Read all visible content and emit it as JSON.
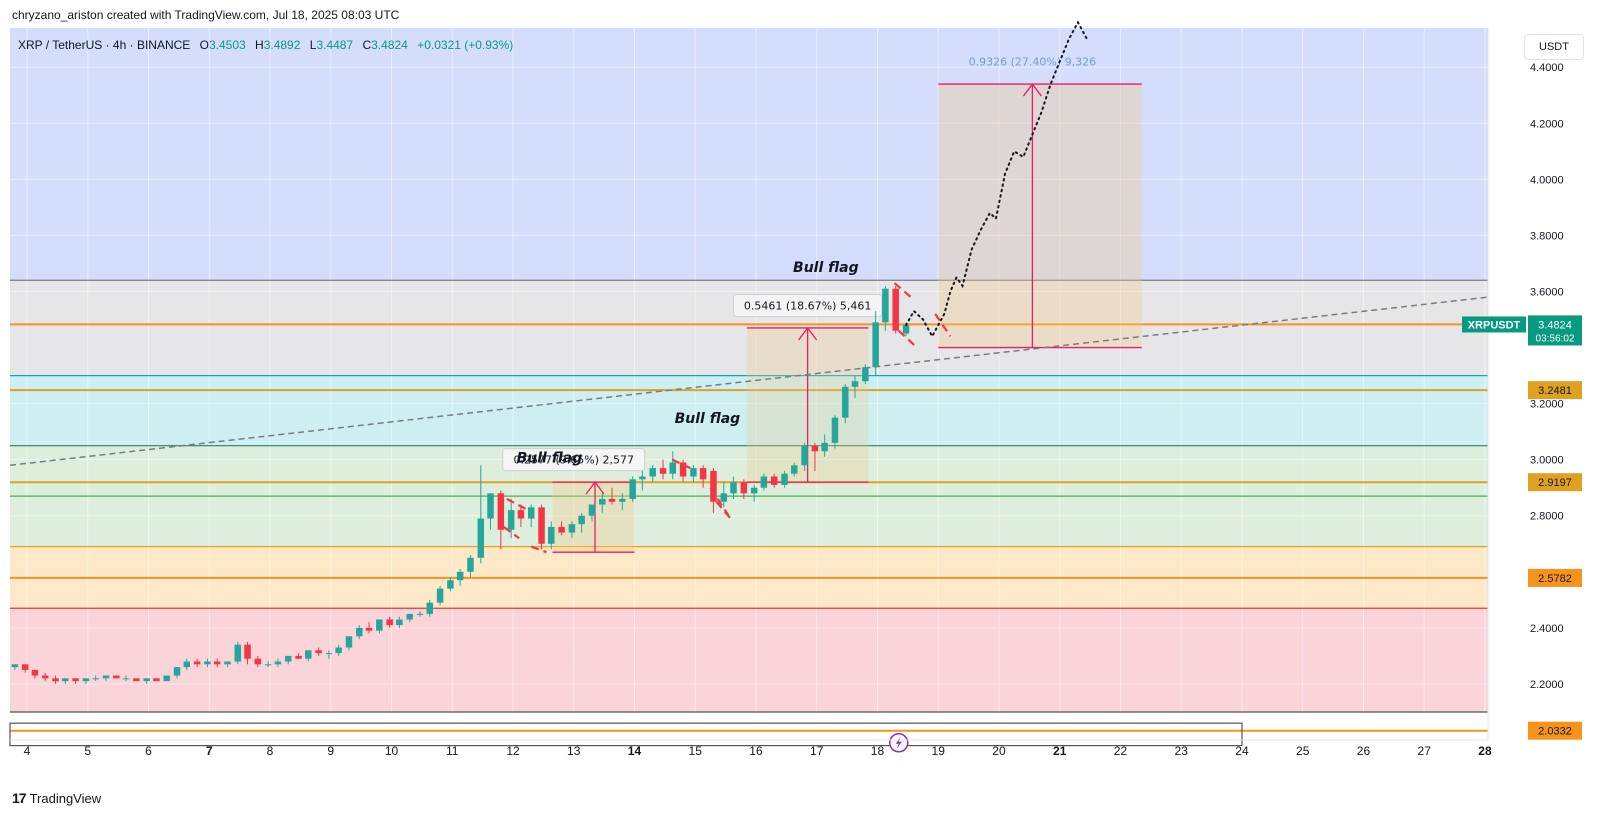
{
  "header": {
    "author_line": "chryzano_ariston created with TradingView.com, Jul 18, 2025 08:03 UTC"
  },
  "legend": {
    "symbol": "XRP / TetherUS · 4h · BINANCE",
    "open_label": "O",
    "open": "3.4503",
    "high_label": "H",
    "high": "3.4892",
    "low_label": "L",
    "low": "3.4487",
    "close_label": "C",
    "close": "3.4824",
    "change": "+0.0321 (+0.93%)"
  },
  "currency_button": "USDT",
  "footer": {
    "brand": "TradingView"
  },
  "colors": {
    "up": "#26a69a",
    "down": "#f23645",
    "orange": "#f7931a",
    "measure": "#e91e63",
    "zone_blue": "#d4ddfc",
    "zone_gray": "#e6e6e8",
    "zone_cyan": "#cdeff2",
    "zone_green": "#ddeedd",
    "zone_peach": "#fde8c9",
    "zone_pink": "#fad4d9"
  },
  "chart_data": {
    "type": "candlestick",
    "symbol": "XRPUSDT",
    "timeframe": "4h",
    "x_ticks": [
      "4",
      "5",
      "6",
      "7",
      "8",
      "9",
      "10",
      "11",
      "12",
      "13",
      "14",
      "15",
      "16",
      "17",
      "18",
      "19",
      "20",
      "21",
      "22",
      "23",
      "24",
      "25",
      "26",
      "27",
      "28"
    ],
    "bold_ticks": [
      "7",
      "14",
      "21",
      "28"
    ],
    "x_range_days": [
      3.72,
      28.05
    ],
    "y_ticks": [
      "4.4000",
      "4.2000",
      "4.0000",
      "3.8000",
      "3.6000",
      "3.2000",
      "3.0000",
      "2.8000",
      "2.4000",
      "2.2000"
    ],
    "y_range": [
      2.0,
      4.54
    ],
    "zones": [
      {
        "from": 3.64,
        "to": 4.54,
        "color": "zone_blue"
      },
      {
        "from": 3.3,
        "to": 3.64,
        "color": "zone_gray"
      },
      {
        "from": 3.05,
        "to": 3.3,
        "color": "zone_cyan"
      },
      {
        "from": 2.69,
        "to": 3.05,
        "color": "zone_green"
      },
      {
        "from": 2.47,
        "to": 2.69,
        "color": "zone_peach"
      },
      {
        "from": 2.1,
        "to": 2.47,
        "color": "zone_pink"
      }
    ],
    "levels": [
      {
        "y": 3.4827,
        "label": "3.4827",
        "color": "#f7931a",
        "width": 2
      },
      {
        "y": 3.2481,
        "label": "3.2481",
        "color": "#e0a020",
        "width": 2
      },
      {
        "y": 2.9197,
        "label": "2.9197",
        "color": "#e0a020",
        "width": 2
      },
      {
        "y": 2.5782,
        "label": "2.5782",
        "color": "#f7931a",
        "width": 2
      },
      {
        "y": 2.0332,
        "label": "2.0332",
        "color": "#f7931a",
        "width": 2
      }
    ],
    "lines": [
      {
        "y": 3.64,
        "color": "#787b86"
      },
      {
        "y": 3.3,
        "color": "#00acc1"
      },
      {
        "y": 3.05,
        "color": "#2e7d62"
      },
      {
        "y": 2.87,
        "color": "#4caf50"
      },
      {
        "y": 2.69,
        "color": "#ff9800"
      },
      {
        "y": 2.47,
        "color": "#e53935"
      },
      {
        "y": 2.1,
        "color": "#555555"
      }
    ],
    "bottom_box": {
      "x0": 3.72,
      "x1": 24.0,
      "y0": 1.98,
      "y1": 2.06
    },
    "last_price": {
      "symbol": "XRPUSDT",
      "price": "3.4824",
      "countdown": "03:56:02"
    },
    "candles": [
      [
        3.8,
        2.26,
        2.27,
        2.25,
        2.27
      ],
      [
        3.97,
        2.27,
        2.27,
        2.24,
        2.25
      ],
      [
        4.13,
        2.25,
        2.25,
        2.22,
        2.23
      ],
      [
        4.3,
        2.23,
        2.24,
        2.21,
        2.22
      ],
      [
        4.47,
        2.22,
        2.23,
        2.2,
        2.21
      ],
      [
        4.63,
        2.21,
        2.22,
        2.2,
        2.22
      ],
      [
        4.8,
        2.22,
        2.22,
        2.2,
        2.21
      ],
      [
        4.97,
        2.21,
        2.22,
        2.2,
        2.22
      ],
      [
        5.13,
        2.22,
        2.23,
        2.21,
        2.22
      ],
      [
        5.3,
        2.22,
        2.23,
        2.21,
        2.23
      ],
      [
        5.47,
        2.23,
        2.23,
        2.22,
        2.22
      ],
      [
        5.63,
        2.22,
        2.23,
        2.21,
        2.22
      ],
      [
        5.8,
        2.22,
        2.22,
        2.21,
        2.21
      ],
      [
        5.97,
        2.21,
        2.22,
        2.2,
        2.22
      ],
      [
        6.13,
        2.22,
        2.22,
        2.21,
        2.21
      ],
      [
        6.3,
        2.21,
        2.23,
        2.21,
        2.23
      ],
      [
        6.47,
        2.23,
        2.26,
        2.22,
        2.26
      ],
      [
        6.63,
        2.26,
        2.29,
        2.25,
        2.28
      ],
      [
        6.8,
        2.28,
        2.29,
        2.26,
        2.27
      ],
      [
        6.97,
        2.27,
        2.29,
        2.26,
        2.28
      ],
      [
        7.13,
        2.28,
        2.29,
        2.26,
        2.27
      ],
      [
        7.3,
        2.27,
        2.28,
        2.26,
        2.28
      ],
      [
        7.47,
        2.28,
        2.35,
        2.27,
        2.34
      ],
      [
        7.63,
        2.34,
        2.35,
        2.27,
        2.29
      ],
      [
        7.8,
        2.29,
        2.3,
        2.26,
        2.27
      ],
      [
        7.97,
        2.27,
        2.28,
        2.26,
        2.27
      ],
      [
        8.13,
        2.27,
        2.29,
        2.26,
        2.28
      ],
      [
        8.3,
        2.28,
        2.3,
        2.27,
        2.3
      ],
      [
        8.47,
        2.3,
        2.31,
        2.29,
        2.29
      ],
      [
        8.63,
        2.29,
        2.32,
        2.28,
        2.32
      ],
      [
        8.8,
        2.32,
        2.33,
        2.3,
        2.31
      ],
      [
        8.97,
        2.31,
        2.32,
        2.29,
        2.31
      ],
      [
        9.13,
        2.31,
        2.34,
        2.3,
        2.33
      ],
      [
        9.3,
        2.33,
        2.37,
        2.32,
        2.37
      ],
      [
        9.47,
        2.37,
        2.41,
        2.36,
        2.4
      ],
      [
        9.63,
        2.4,
        2.42,
        2.38,
        2.39
      ],
      [
        9.8,
        2.39,
        2.43,
        2.38,
        2.43
      ],
      [
        9.97,
        2.43,
        2.44,
        2.4,
        2.41
      ],
      [
        10.13,
        2.41,
        2.44,
        2.4,
        2.43
      ],
      [
        10.3,
        2.43,
        2.45,
        2.42,
        2.45
      ],
      [
        10.47,
        2.45,
        2.46,
        2.44,
        2.45
      ],
      [
        10.63,
        2.45,
        2.5,
        2.44,
        2.49
      ],
      [
        10.8,
        2.49,
        2.55,
        2.48,
        2.54
      ],
      [
        10.97,
        2.54,
        2.58,
        2.53,
        2.57
      ],
      [
        11.13,
        2.57,
        2.61,
        2.55,
        2.6
      ],
      [
        11.3,
        2.6,
        2.66,
        2.58,
        2.65
      ],
      [
        11.47,
        2.65,
        2.98,
        2.63,
        2.79
      ],
      [
        11.63,
        2.79,
        2.88,
        2.75,
        2.88
      ],
      [
        11.8,
        2.88,
        2.89,
        2.68,
        2.75
      ],
      [
        11.97,
        2.75,
        2.86,
        2.72,
        2.82
      ],
      [
        12.13,
        2.82,
        2.84,
        2.76,
        2.79
      ],
      [
        12.3,
        2.79,
        2.84,
        2.76,
        2.83
      ],
      [
        12.47,
        2.83,
        2.84,
        2.68,
        2.7
      ],
      [
        12.63,
        2.7,
        2.78,
        2.68,
        2.76
      ],
      [
        12.8,
        2.76,
        2.78,
        2.73,
        2.74
      ],
      [
        12.97,
        2.74,
        2.78,
        2.72,
        2.77
      ],
      [
        13.13,
        2.77,
        2.81,
        2.74,
        2.8
      ],
      [
        13.3,
        2.8,
        2.84,
        2.78,
        2.84
      ],
      [
        13.47,
        2.84,
        2.88,
        2.81,
        2.86
      ],
      [
        13.63,
        2.86,
        2.9,
        2.84,
        2.85
      ],
      [
        13.8,
        2.85,
        2.88,
        2.82,
        2.86
      ],
      [
        13.97,
        2.86,
        2.94,
        2.85,
        2.93
      ],
      [
        14.13,
        2.93,
        2.96,
        2.89,
        2.94
      ],
      [
        14.3,
        2.94,
        2.98,
        2.92,
        2.97
      ],
      [
        14.47,
        2.97,
        3.0,
        2.93,
        2.95
      ],
      [
        14.63,
        2.95,
        3.03,
        2.93,
        2.99
      ],
      [
        14.8,
        2.99,
        3.0,
        2.92,
        2.94
      ],
      [
        14.97,
        2.94,
        2.98,
        2.92,
        2.97
      ],
      [
        15.13,
        2.97,
        2.98,
        2.9,
        2.93
      ],
      [
        15.3,
        2.96,
        2.97,
        2.81,
        2.85
      ],
      [
        15.47,
        2.85,
        2.92,
        2.83,
        2.88
      ],
      [
        15.63,
        2.88,
        2.94,
        2.86,
        2.92
      ],
      [
        15.8,
        2.92,
        2.93,
        2.86,
        2.88
      ],
      [
        15.97,
        2.88,
        2.91,
        2.85,
        2.9
      ],
      [
        16.13,
        2.9,
        2.95,
        2.89,
        2.94
      ],
      [
        16.3,
        2.94,
        2.95,
        2.9,
        2.91
      ],
      [
        16.47,
        2.91,
        2.96,
        2.9,
        2.95
      ],
      [
        16.63,
        2.95,
        2.99,
        2.94,
        2.98
      ],
      [
        16.8,
        2.98,
        3.06,
        2.96,
        3.05
      ],
      [
        16.97,
        3.05,
        3.06,
        2.96,
        3.03
      ],
      [
        17.13,
        3.03,
        3.09,
        3.01,
        3.06
      ],
      [
        17.3,
        3.06,
        3.16,
        3.04,
        3.15
      ],
      [
        17.47,
        3.15,
        3.27,
        3.13,
        3.26
      ],
      [
        17.63,
        3.26,
        3.3,
        3.22,
        3.28
      ],
      [
        17.8,
        3.28,
        3.34,
        3.27,
        3.33
      ],
      [
        17.97,
        3.33,
        3.53,
        3.3,
        3.49
      ],
      [
        18.13,
        3.49,
        3.62,
        3.46,
        3.61
      ],
      [
        18.3,
        3.61,
        3.62,
        3.45,
        3.46
      ],
      [
        18.47,
        3.45,
        3.49,
        3.44,
        3.48
      ]
    ],
    "projection_path": [
      [
        18.47,
        3.48
      ],
      [
        18.6,
        3.53
      ],
      [
        18.75,
        3.5
      ],
      [
        18.9,
        3.44
      ],
      [
        19.0,
        3.48
      ],
      [
        19.1,
        3.52
      ],
      [
        19.2,
        3.6
      ],
      [
        19.3,
        3.65
      ],
      [
        19.4,
        3.62
      ],
      [
        19.55,
        3.75
      ],
      [
        19.7,
        3.82
      ],
      [
        19.85,
        3.88
      ],
      [
        19.95,
        3.86
      ],
      [
        20.1,
        4.02
      ],
      [
        20.25,
        4.1
      ],
      [
        20.4,
        4.08
      ],
      [
        20.55,
        4.16
      ],
      [
        20.7,
        4.24
      ],
      [
        20.85,
        4.34
      ],
      [
        21.0,
        4.42
      ],
      [
        21.15,
        4.5
      ],
      [
        21.3,
        4.56
      ],
      [
        21.45,
        4.5
      ]
    ],
    "trendline": {
      "x0": 3.72,
      "y0": 2.98,
      "x1": 28.05,
      "y1": 3.58
    },
    "flag_channels": [
      [
        [
          11.85,
          2.76
        ],
        [
          12.1,
          2.72
        ]
      ],
      [
        [
          12.3,
          2.69
        ],
        [
          12.55,
          2.67
        ]
      ],
      [
        [
          11.9,
          2.86
        ],
        [
          12.25,
          2.82
        ]
      ],
      [
        [
          14.62,
          3.0
        ],
        [
          14.92,
          2.97
        ]
      ],
      [
        [
          15.25,
          2.9
        ],
        [
          15.55,
          2.8
        ]
      ],
      [
        [
          15.35,
          2.85
        ],
        [
          15.62,
          2.78
        ]
      ],
      [
        [
          18.28,
          3.63
        ],
        [
          18.55,
          3.58
        ]
      ],
      [
        [
          18.95,
          3.52
        ],
        [
          19.2,
          3.44
        ]
      ],
      [
        [
          18.35,
          3.46
        ],
        [
          18.65,
          3.4
        ]
      ]
    ],
    "measure_boxes": [
      {
        "x0": 12.65,
        "x1": 14.0,
        "y0": 2.67,
        "y1": 2.92,
        "top_y": 2.92,
        "arrow_x": 13.35,
        "label": "0.2577 (9.65%) 2,577",
        "label_x": 13.0,
        "label_y": 3.0,
        "opacity": 0.35,
        "label_box": true
      },
      {
        "x0": 15.85,
        "x1": 17.85,
        "y0": 2.92,
        "y1": 3.47,
        "top_y": 3.47,
        "arrow_x": 16.85,
        "label": "0.5461 (18.67%) 5,461",
        "label_x": 16.85,
        "label_y": 3.55,
        "opacity": 0.3,
        "label_box": true
      },
      {
        "x0": 19.0,
        "x1": 22.35,
        "y0": 3.4,
        "y1": 4.34,
        "top_y": 4.34,
        "arrow_x": 20.55,
        "label": "0.9326 (27.40%) 9,326",
        "label_x": 20.55,
        "label_y": 4.42,
        "opacity": 0.35,
        "label_box": false
      }
    ],
    "annotations": [
      {
        "text": "Bull flag",
        "x": 12.6,
        "y": 2.99
      },
      {
        "text": "Bull flag",
        "x": 15.2,
        "y": 3.13
      },
      {
        "text": "Bull flag",
        "x": 17.15,
        "y": 3.67
      }
    ]
  }
}
